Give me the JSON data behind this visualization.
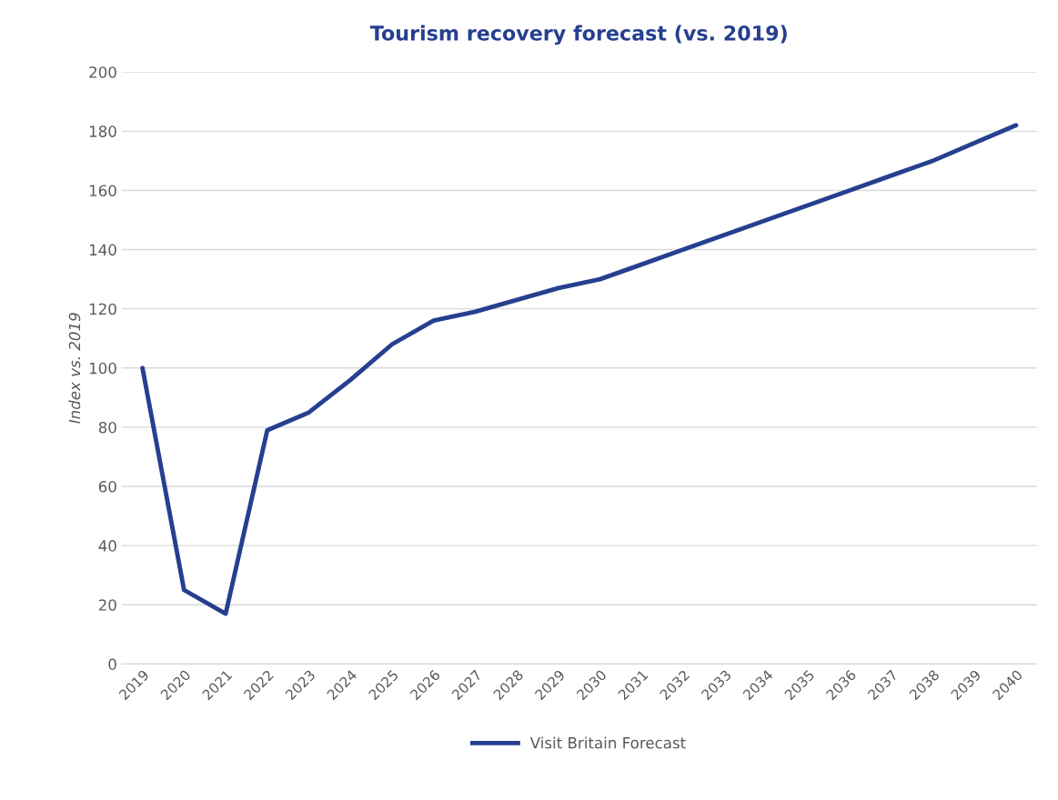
{
  "chart_data": {
    "type": "line",
    "title": "Tourism recovery forecast (vs. 2019)",
    "ylabel": "Index vs. 2019",
    "categories": [
      "2019",
      "2020",
      "2021",
      "2022",
      "2023",
      "2024",
      "2025",
      "2026",
      "2027",
      "2028",
      "2029",
      "2030",
      "2031",
      "2032",
      "2033",
      "2034",
      "2035",
      "2036",
      "2037",
      "2038",
      "2039",
      "2040"
    ],
    "series": [
      {
        "name": "Visit Britain Forecast",
        "color": "#263f8f",
        "values": [
          100,
          25,
          17,
          79,
          85,
          96,
          108,
          116,
          119,
          123,
          127,
          130,
          135,
          140,
          145,
          150,
          155,
          160,
          165,
          170,
          176,
          182
        ]
      }
    ],
    "ylim": [
      0,
      200
    ],
    "yticks": [
      0,
      20,
      40,
      60,
      80,
      100,
      120,
      140,
      160,
      180,
      200
    ],
    "grid": "y",
    "legend": "bottom",
    "marker": "none",
    "line_style": "solid"
  }
}
